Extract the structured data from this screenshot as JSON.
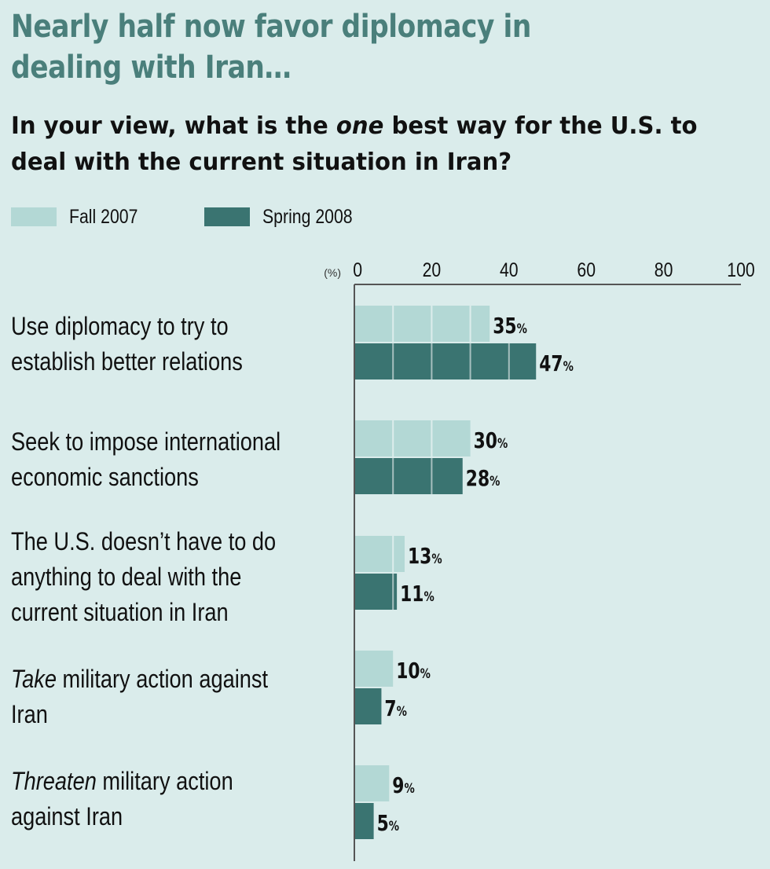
{
  "colors": {
    "fall": "#b3d8d5",
    "spring": "#3a7471",
    "axis": "#555555",
    "title": "#4a7f7b",
    "background": "#daeceb"
  },
  "chart_data": {
    "type": "bar",
    "orientation": "horizontal",
    "title": "Nearly half now favor diplomacy in dealing with Iran…",
    "subtitle_parts": [
      "In your view, what is the ",
      "one",
      " best way for the U.S. to deal with the current situation in Iran?"
    ],
    "unit_label": "(%)",
    "percent_sign": "%",
    "xlim": [
      0,
      100
    ],
    "ticks": [
      0,
      20,
      40,
      60,
      80,
      100
    ],
    "legend_position": "top-left",
    "categories": [
      {
        "parts": [
          "Use diplomacy to try to establish better relations"
        ],
        "emph": [
          false
        ]
      },
      {
        "parts": [
          "Seek to impose international economic sanctions"
        ],
        "emph": [
          false
        ]
      },
      {
        "parts": [
          "The U.S. doesn’t have to do anything to deal with the current situation in Iran"
        ],
        "emph": [
          false
        ]
      },
      {
        "parts": [
          "Take",
          " military action against Iran"
        ],
        "emph": [
          true,
          false
        ]
      },
      {
        "parts": [
          "Threaten",
          " military action against Iran"
        ],
        "emph": [
          true,
          false
        ]
      }
    ],
    "series": [
      {
        "name": "Fall 2007",
        "values": [
          35,
          30,
          13,
          10,
          9
        ]
      },
      {
        "name": "Spring 2008",
        "values": [
          47,
          28,
          11,
          7,
          5
        ]
      }
    ]
  }
}
